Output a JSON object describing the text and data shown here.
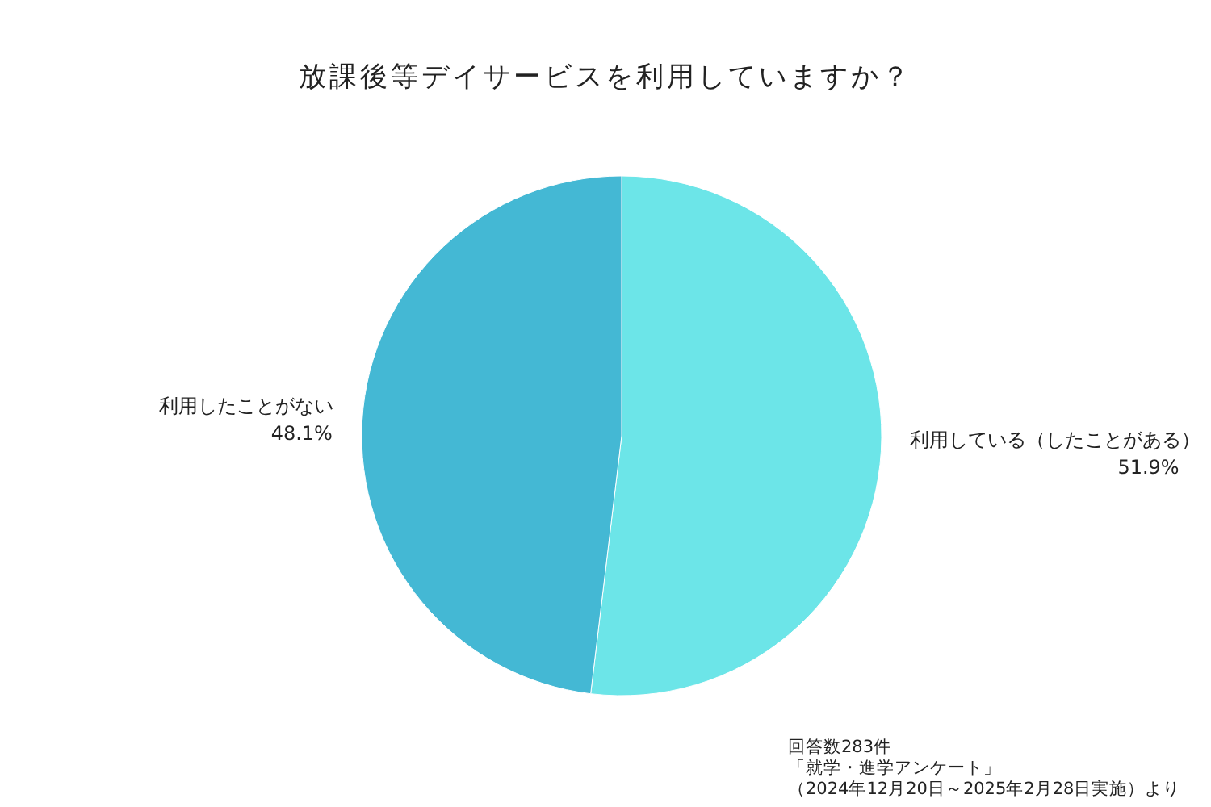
{
  "chart_data": {
    "type": "pie",
    "title": "放課後等デイサービスを利用していますか？",
    "categories": [
      "利用している（したことがある）",
      "利用したことがない"
    ],
    "values": [
      51.9,
      48.1
    ],
    "colors": [
      "#6ce5e8",
      "#44b8d4"
    ],
    "value_labels": [
      "51.9%",
      "48.1%"
    ],
    "annotations": [
      "回答数283件",
      "「就学・進学アンケート」",
      "（2024年12月20日～2025年2月28日実施）より"
    ]
  }
}
